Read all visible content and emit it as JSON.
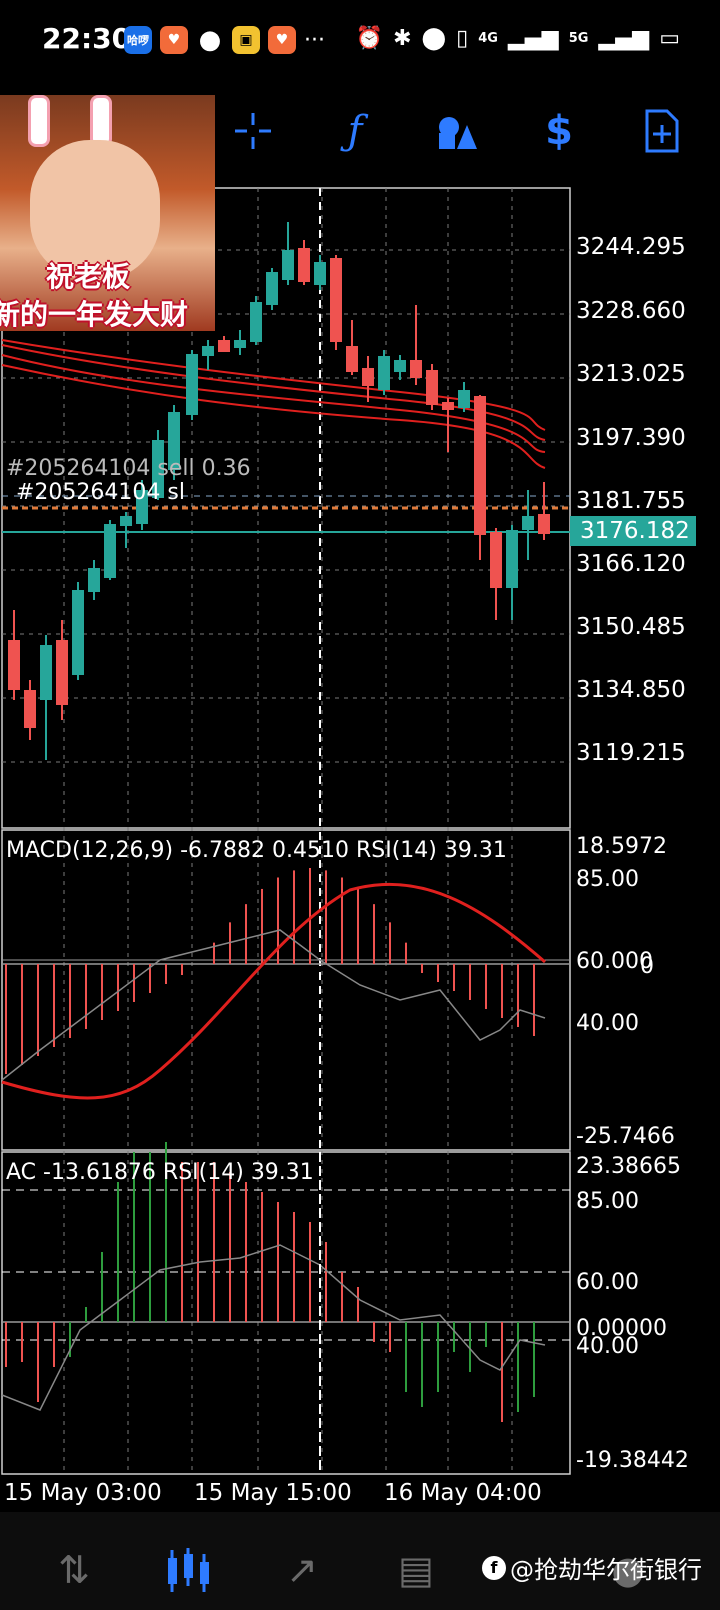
{
  "status_bar": {
    "time": "22:30",
    "app_icons": [
      "哈啰",
      "heart-app",
      "chat-bubble",
      "card-app",
      "heart-app-2",
      "..."
    ],
    "network": [
      "4G",
      "5G"
    ]
  },
  "toolbar": {
    "icons": [
      "crosshair-icon",
      "function-icon",
      "objects-icon",
      "trade-icon",
      "new-order-icon"
    ]
  },
  "overlay": {
    "line1": "祝老板",
    "line2": "新的一年发大财"
  },
  "main_chart": {
    "order_label_1": "#205264104 sell 0.36",
    "order_label_2": "#205264104 sl",
    "price_levels": [
      "3244.295",
      "3228.660",
      "3213.025",
      "3197.390",
      "3181.755",
      "3166.120",
      "3150.485",
      "3134.850",
      "3119.215"
    ],
    "current_price": "3176.182",
    "colors": {
      "bull": "#26a69a",
      "bear": "#ef5350",
      "ma": "#e0201e",
      "grid": "#7a7a7a"
    }
  },
  "macd_panel": {
    "label": "MACD(12,26,9) -6.7882 0.4510 RSI(14) 39.31",
    "scale_top": "18.5972",
    "rsi_85": "85.00",
    "rsi_60": "60.000",
    "zero": "0",
    "rsi_40": "40.00",
    "scale_bottom": "-25.7466"
  },
  "ac_panel": {
    "label": "AC -13.61876 RSI(14) 39.31",
    "scale_top": "23.38665",
    "rsi_85": "85.00",
    "rsi_60": "60.00",
    "zero": "0.00000",
    "rsi_40": "40.00",
    "scale_bottom": "-19.38442"
  },
  "time_axis": {
    "labels": [
      "15 May 03:00",
      "15 May 15:00",
      "16 May 04:00"
    ]
  },
  "bottom_nav": {
    "items": [
      "quotes-icon",
      "chart-icon",
      "trade-icon",
      "history-icon",
      "messages-icon"
    ]
  },
  "watermark": "@抢劫华尔街银行"
}
